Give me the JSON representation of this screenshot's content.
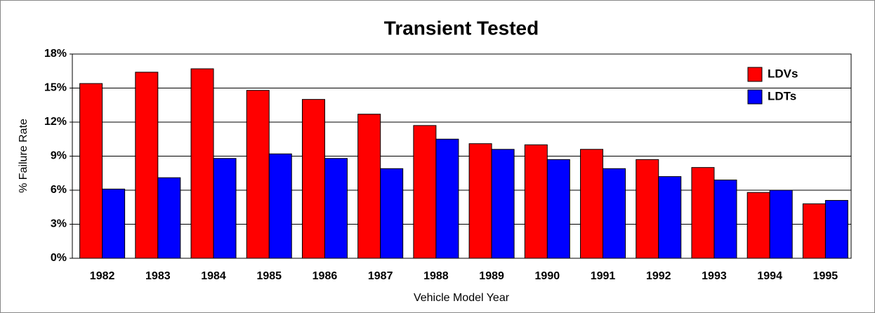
{
  "chart_data": {
    "type": "bar",
    "title": "Transient Tested",
    "x_label": "Vehicle Model Year",
    "y_label": "% Failure Rate",
    "categories": [
      "1982",
      "1983",
      "1984",
      "1985",
      "1986",
      "1987",
      "1988",
      "1989",
      "1990",
      "1991",
      "1992",
      "1993",
      "1994",
      "1995"
    ],
    "series": [
      {
        "name": "LDVs",
        "color": "#ff0000",
        "values": [
          15.4,
          16.4,
          16.7,
          14.8,
          14.0,
          12.7,
          11.7,
          10.1,
          10.0,
          9.6,
          8.7,
          8.0,
          5.8,
          4.8
        ]
      },
      {
        "name": "LDTs",
        "color": "#0000ff",
        "values": [
          6.1,
          7.1,
          8.8,
          9.2,
          8.8,
          7.9,
          10.5,
          9.6,
          8.7,
          7.9,
          7.2,
          6.9,
          6.0,
          5.1
        ]
      }
    ],
    "ylim": [
      0,
      18
    ],
    "yticks": [
      {
        "value": 0,
        "label": "0%"
      },
      {
        "value": 3,
        "label": "3%"
      },
      {
        "value": 6,
        "label": "6%"
      },
      {
        "value": 9,
        "label": "9%"
      },
      {
        "value": 12,
        "label": "12%"
      },
      {
        "value": 15,
        "label": "15%"
      },
      {
        "value": 18,
        "label": "18%"
      }
    ],
    "grid": true,
    "legend": "upper right"
  }
}
